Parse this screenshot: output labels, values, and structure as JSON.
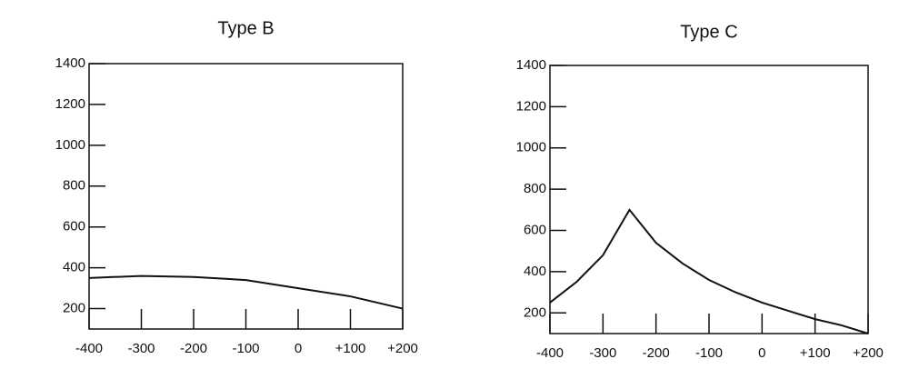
{
  "chart_data": [
    {
      "type": "line",
      "title": "Type B",
      "x": [
        -400,
        -300,
        -200,
        -100,
        0,
        100,
        200
      ],
      "values": [
        350,
        360,
        355,
        340,
        300,
        260,
        200
      ],
      "color": "#111111",
      "xlim": [
        -400,
        200
      ],
      "ylim": [
        100,
        1400
      ],
      "xticks": [
        -400,
        -300,
        -200,
        -100,
        0,
        {
          "value": 100,
          "label": "+100"
        },
        {
          "value": 200,
          "label": "+200"
        }
      ],
      "yticks": [
        200,
        400,
        600,
        800,
        1000,
        1200,
        1400
      ],
      "grid": false
    },
    {
      "type": "line",
      "title": "Type C",
      "x": [
        -400,
        -350,
        -300,
        -250,
        -200,
        -150,
        -100,
        -50,
        0,
        50,
        100,
        150,
        200
      ],
      "values": [
        250,
        350,
        480,
        700,
        540,
        440,
        360,
        300,
        250,
        210,
        170,
        140,
        100
      ],
      "color": "#111111",
      "xlim": [
        -400,
        200
      ],
      "ylim": [
        100,
        1400
      ],
      "xticks": [
        -400,
        -300,
        -200,
        -100,
        0,
        {
          "value": 100,
          "label": "+100"
        },
        {
          "value": 200,
          "label": "+200"
        }
      ],
      "yticks": [
        200,
        400,
        600,
        800,
        1000,
        1200,
        1400
      ],
      "grid": false
    }
  ]
}
